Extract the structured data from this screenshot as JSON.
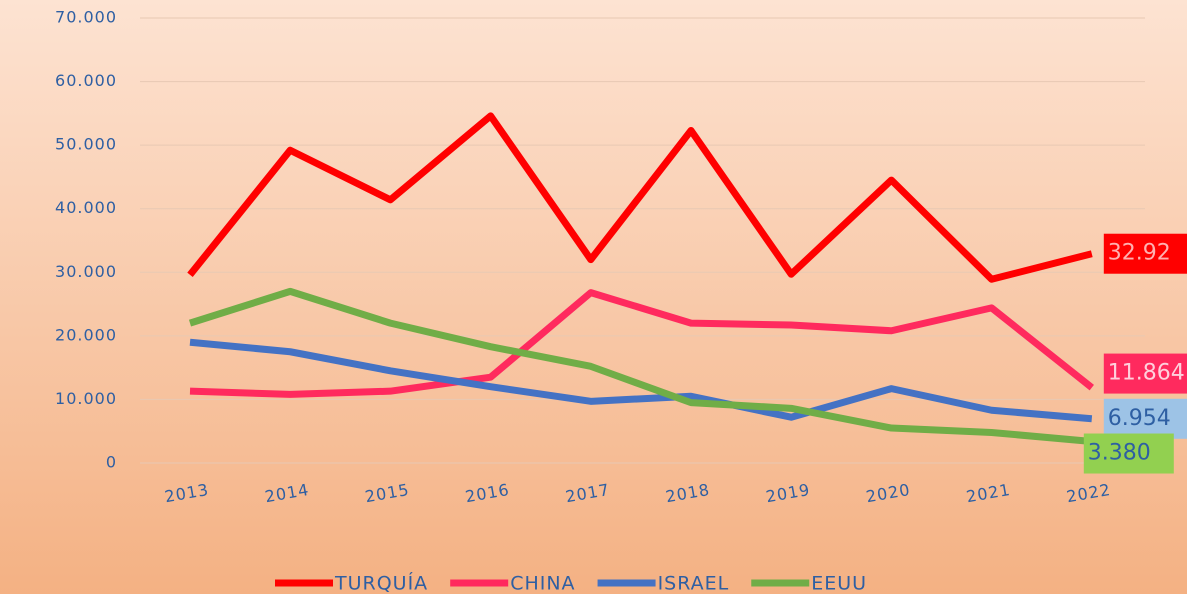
{
  "chart_data": {
    "type": "line",
    "categories": [
      "2013",
      "2014",
      "2015",
      "2016",
      "2017",
      "2018",
      "2019",
      "2020",
      "2021",
      "2022"
    ],
    "series": [
      {
        "name": "TURQUÍA",
        "color": "#ff0000",
        "values": [
          29600,
          49200,
          41400,
          54600,
          32000,
          52300,
          29700,
          44500,
          28900,
          32920
        ],
        "value_labels": [
          null,
          null,
          null,
          null,
          null,
          null,
          null,
          null,
          null,
          "32.92"
        ],
        "label_bg": "#ff0000",
        "label_color": "#ffb0b0"
      },
      {
        "name": "CHINA",
        "color": "#ff2a5e",
        "values": [
          11300,
          10800,
          11300,
          13500,
          26800,
          22000,
          21700,
          20800,
          24400,
          11864
        ],
        "value_labels": [
          null,
          null,
          null,
          null,
          null,
          null,
          null,
          null,
          null,
          "11.864"
        ],
        "label_bg": "#ff2a5e",
        "label_color": "#ffd0dc"
      },
      {
        "name": "ISRAEL",
        "color": "#4472c4",
        "values": [
          19000,
          17500,
          14500,
          12000,
          9700,
          10500,
          7200,
          11700,
          8300,
          6954
        ],
        "value_labels": [
          null,
          null,
          null,
          null,
          null,
          null,
          null,
          null,
          null,
          "6.954"
        ],
        "label_bg": "#9dc3e6",
        "label_color": "#2e5fa3"
      },
      {
        "name": "EEUU",
        "color": "#70ad47",
        "values": [
          22000,
          27000,
          22000,
          18300,
          15200,
          9500,
          8600,
          5500,
          4800,
          3380
        ],
        "value_labels": [
          null,
          null,
          null,
          null,
          null,
          null,
          null,
          null,
          null,
          "3.380"
        ],
        "label_bg": "#92d050",
        "label_color": "#2e5fa3"
      }
    ],
    "ylim": [
      0,
      70000
    ],
    "yticks": [
      0,
      {
        "value": 10000,
        "label": "10.000"
      },
      {
        "value": 20000,
        "label": "20.000"
      },
      {
        "value": 30000,
        "label": "30.000"
      },
      {
        "value": 40000,
        "label": "40.000"
      },
      {
        "value": 50000,
        "label": "50.000"
      },
      {
        "value": 60000,
        "label": "60.000"
      },
      {
        "value": 70000,
        "label": "70.000"
      }
    ],
    "grid": true,
    "legend": "bottom"
  }
}
